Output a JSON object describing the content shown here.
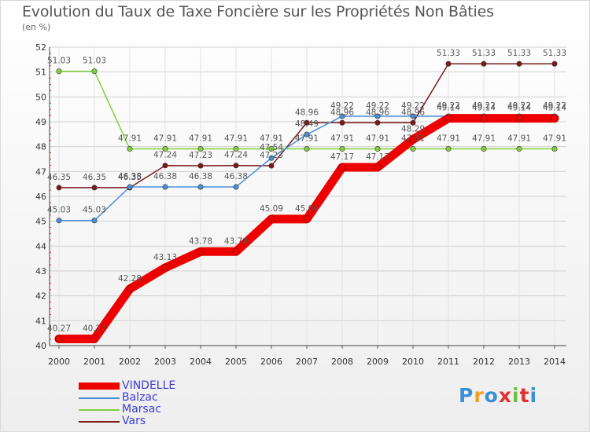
{
  "header": {
    "title": "Evolution du Taux de Taxe Foncière sur les Propriétés Non Bâties",
    "unit": "(en %)"
  },
  "brand": {
    "logo_text": "Proxiti"
  },
  "chart_data": {
    "type": "line",
    "title": "Evolution du Taux de Taxe Foncière sur les Propriétés Non Bâties",
    "ylabel": "(en %)",
    "xlabel": "",
    "x": [
      "2000",
      "2001",
      "2002",
      "2003",
      "2004",
      "2005",
      "2006",
      "2007",
      "2008",
      "2009",
      "2010",
      "2011",
      "2012",
      "2013",
      "2014"
    ],
    "ylim": [
      40,
      52
    ],
    "yticks": [
      "40",
      "41",
      "42",
      "43",
      "44",
      "45",
      "46",
      "47",
      "48",
      "49",
      "50",
      "51",
      "52"
    ],
    "grid": true,
    "legend_position": "bottom-left",
    "series": [
      {
        "name": "VINDELLE",
        "color": "#ee0000",
        "values": [
          40.27,
          40.27,
          42.28,
          43.13,
          43.78,
          43.78,
          45.09,
          45.09,
          47.17,
          47.17,
          48.29,
          49.14,
          49.14,
          49.14,
          49.14
        ],
        "labels": [
          "40.27",
          "40.27",
          "42.28",
          "43.13",
          "43.78",
          "43.78",
          "45.09",
          "45.09",
          "47.17",
          "47.17",
          "48.29",
          "49.14",
          "49.14",
          "49.14",
          "49.14"
        ]
      },
      {
        "name": "Balzac",
        "color": "#4a90d9",
        "values": [
          45.03,
          45.03,
          46.38,
          46.38,
          46.38,
          46.38,
          47.54,
          48.49,
          49.22,
          49.22,
          49.22,
          49.22,
          49.22,
          49.22,
          49.22
        ],
        "labels": [
          "45.03",
          "45.03",
          "46.38",
          "46.38",
          "46.38",
          "46.38",
          "47.54",
          "48.49",
          "49.22",
          "49.22",
          "49.22",
          "49.22",
          "49.22",
          "49.22",
          "49.22"
        ]
      },
      {
        "name": "Marsac",
        "color": "#7fd13b",
        "values": [
          51.03,
          51.03,
          47.91,
          47.91,
          47.91,
          47.91,
          47.91,
          47.91,
          47.91,
          47.91,
          47.91,
          47.91,
          47.91,
          47.91,
          47.91
        ],
        "labels": [
          "51.03",
          "51.03",
          "47.91",
          "47.91",
          "47.91",
          "47.91",
          "47.91",
          "47.91",
          "47.91",
          "47.91",
          "47.91",
          "47.91",
          "47.91",
          "47.91",
          "47.91"
        ]
      },
      {
        "name": "Vars",
        "color": "#7a1a1a",
        "values": [
          46.35,
          46.35,
          46.35,
          47.24,
          47.23,
          47.24,
          47.23,
          48.96,
          48.96,
          48.96,
          48.96,
          51.33,
          51.33,
          51.33,
          51.33
        ],
        "labels": [
          "46.35",
          "46.35",
          "46.35",
          "47.24",
          "47.23",
          "47.24",
          "47.23",
          "48.96",
          "48.96",
          "48.96",
          "48.96",
          "51.33",
          "51.33",
          "51.33",
          "51.33"
        ]
      }
    ]
  }
}
